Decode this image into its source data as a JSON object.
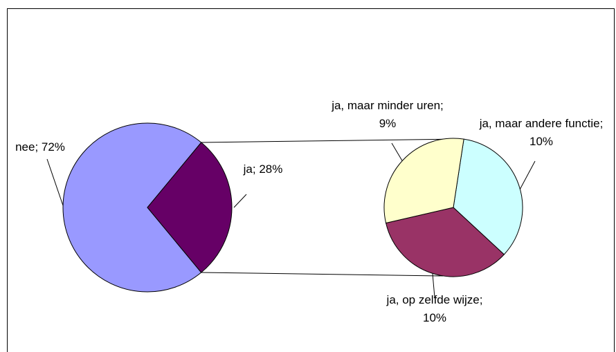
{
  "chart_data": [
    {
      "type": "pie",
      "values": [
        72,
        28
      ],
      "value_labels": [
        "nee; 72%",
        "ja; 28%"
      ],
      "colors": [
        "#9999ff",
        "#660066"
      ]
    },
    {
      "type": "pie",
      "values": [
        10,
        10,
        9
      ],
      "value_labels": [
        "ja, maar andere functie; 10%",
        "ja, op zelfde wijze; 10%",
        "ja, maar minder uren; 9%"
      ],
      "colors": [
        "#ccffff",
        "#993366",
        "#ffffcc"
      ]
    }
  ]
}
